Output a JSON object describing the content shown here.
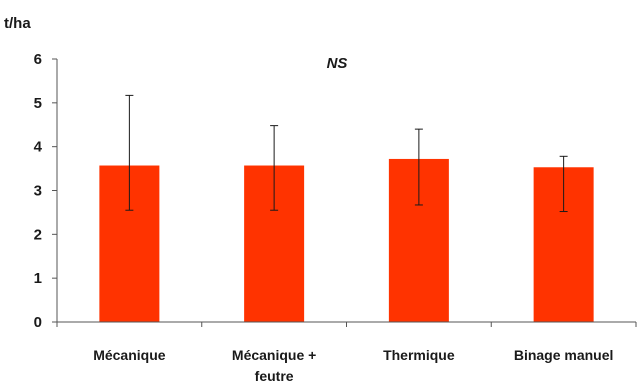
{
  "chart_data": {
    "type": "bar",
    "ylabel": "t/ha",
    "annotation": "NS",
    "ylim": [
      0,
      6
    ],
    "yticks": [
      "0",
      "1",
      "2",
      "3",
      "4",
      "5",
      "6"
    ],
    "categories": [
      [
        "Mécanique"
      ],
      [
        "Mécanique +",
        "feutre"
      ],
      [
        "Thermique"
      ],
      [
        "Binage manuel"
      ]
    ],
    "values": [
      3.57,
      3.57,
      3.72,
      3.53
    ],
    "error_low": [
      2.55,
      2.55,
      2.67,
      2.52
    ],
    "error_high": [
      5.17,
      4.48,
      4.4,
      3.78
    ],
    "bar_color": "#ff3300",
    "grid": false
  }
}
